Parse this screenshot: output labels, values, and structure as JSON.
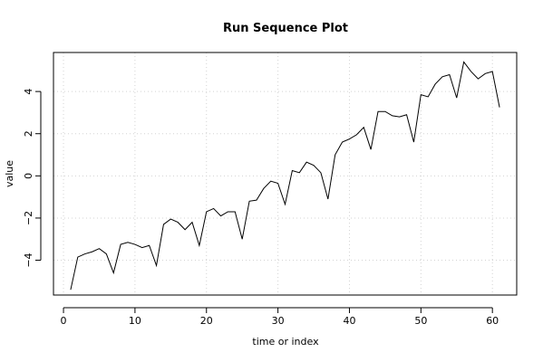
{
  "chart_data": {
    "type": "line",
    "title": "Run Sequence Plot",
    "xlabel": "time or index",
    "ylabel": "value",
    "xlim": [
      -1.4,
      63.4
    ],
    "ylim": [
      -5.65,
      5.85
    ],
    "xticks": [
      0,
      10,
      20,
      30,
      40,
      50,
      60
    ],
    "yticks": [
      -4,
      -2,
      0,
      2,
      4
    ],
    "x_tick_labels": [
      "0",
      "10",
      "20",
      "30",
      "40",
      "50",
      "60"
    ],
    "y_tick_labels": [
      "−4",
      "−2",
      "0",
      "2",
      "4"
    ],
    "grid": true,
    "x": [
      1,
      2,
      3,
      4,
      5,
      6,
      7,
      8,
      9,
      10,
      11,
      12,
      13,
      14,
      15,
      16,
      17,
      18,
      19,
      20,
      21,
      22,
      23,
      24,
      25,
      26,
      27,
      28,
      29,
      30,
      31,
      32,
      33,
      34,
      35,
      36,
      37,
      38,
      39,
      40,
      41,
      42,
      43,
      44,
      45,
      46,
      47,
      48,
      49,
      50,
      51,
      52,
      53,
      54,
      55,
      56,
      57,
      58,
      59,
      60,
      61
    ],
    "y": [
      -5.4,
      -3.85,
      -3.7,
      -3.6,
      -3.45,
      -3.7,
      -4.6,
      -3.25,
      -3.15,
      -3.25,
      -3.4,
      -3.3,
      -4.25,
      -2.3,
      -2.05,
      -2.2,
      -2.55,
      -2.2,
      -3.3,
      -1.7,
      -1.55,
      -1.9,
      -1.7,
      -1.7,
      -3.0,
      -1.2,
      -1.15,
      -0.6,
      -0.25,
      -0.35,
      -1.35,
      0.25,
      0.15,
      0.65,
      0.5,
      0.15,
      -1.1,
      1.0,
      1.6,
      1.75,
      1.95,
      2.3,
      1.25,
      3.05,
      3.05,
      2.85,
      2.8,
      2.9,
      1.6,
      3.85,
      3.75,
      4.35,
      4.7,
      4.8,
      3.7,
      5.4,
      4.95,
      4.6,
      4.85,
      4.95,
      3.25
    ]
  }
}
